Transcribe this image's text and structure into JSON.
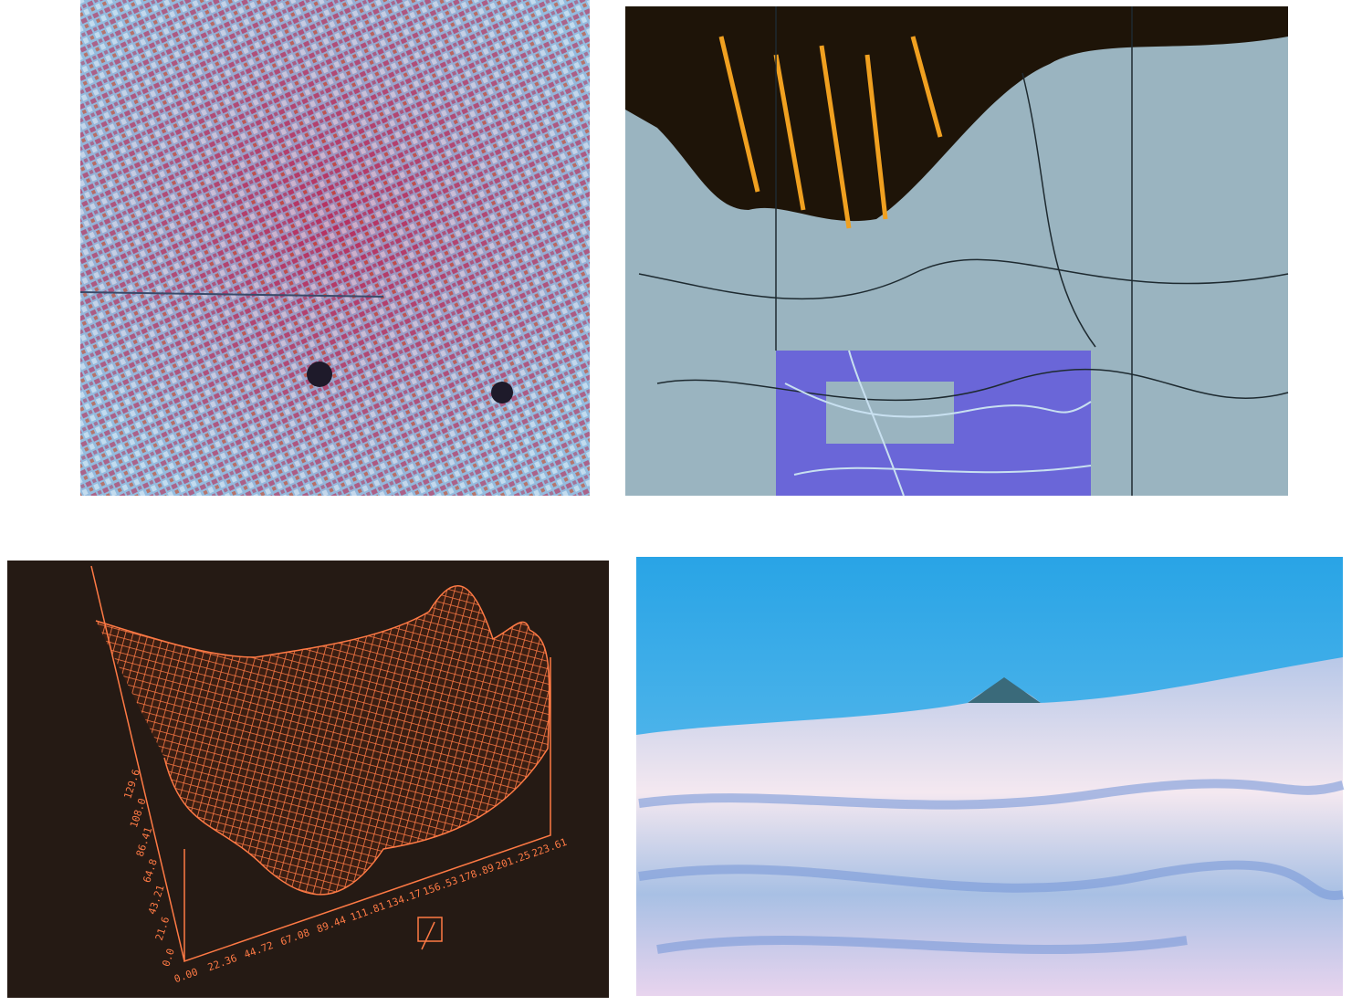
{
  "plot": {
    "x_tick_labels": [
      "0.00",
      "22.36",
      "44.72",
      "67.08",
      "89.44",
      "111.81",
      "134.17",
      "156.53",
      "178.89",
      "201.25",
      "223.61"
    ],
    "y_tick_labels": [
      "0.0",
      "21.6",
      "43.21",
      "64.8",
      "86.41",
      "108.0",
      "129.6"
    ]
  }
}
